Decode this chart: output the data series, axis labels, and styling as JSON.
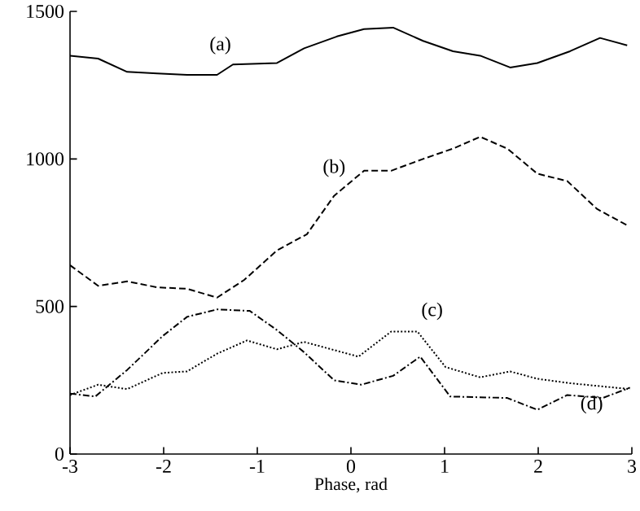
{
  "chart_data": {
    "type": "line",
    "xlabel": "Phase, rad",
    "xlim": [
      -3,
      3
    ],
    "ylim": [
      0,
      1500
    ],
    "xticks": [
      -3,
      -2,
      -1,
      0,
      1,
      2,
      3
    ],
    "yticks": [
      0,
      500,
      1000,
      1500
    ],
    "grid": false,
    "marker": "none",
    "series": [
      {
        "name": "(a)",
        "color": "#000000",
        "line_style": "solid",
        "x": [
          -3,
          -2.7,
          -2.39,
          -2.07,
          -1.75,
          -1.43,
          -1.26,
          -0.79,
          -0.5,
          -0.15,
          0.14,
          0.45,
          0.77,
          1.09,
          1.38,
          1.7,
          1.99,
          2.34,
          2.66,
          2.95
        ],
        "values": [
          1350,
          1340,
          1295,
          1290,
          1285,
          1285,
          1320,
          1325,
          1375,
          1415,
          1440,
          1445,
          1400,
          1365,
          1350,
          1310,
          1325,
          1365,
          1410,
          1385
        ]
      },
      {
        "name": "(b)",
        "color": "#000000",
        "line_style": "dashed",
        "x": [
          -3,
          -2.7,
          -2.39,
          -2.07,
          -1.75,
          -1.43,
          -1.14,
          -0.79,
          -0.47,
          -0.18,
          0.14,
          0.43,
          0.77,
          1.09,
          1.38,
          1.67,
          1.99,
          2.31,
          2.63,
          2.95
        ],
        "values": [
          640,
          570,
          585,
          565,
          560,
          530,
          590,
          690,
          745,
          875,
          960,
          960,
          1000,
          1035,
          1075,
          1035,
          950,
          925,
          830,
          775
        ]
      },
      {
        "name": "(c)",
        "color": "#000000",
        "line_style": "dotted",
        "x": [
          -3,
          -2.7,
          -2.39,
          -2.01,
          -1.75,
          -1.43,
          -1.11,
          -0.79,
          -0.5,
          -0.21,
          0.08,
          0.43,
          0.71,
          1.01,
          1.38,
          1.7,
          1.99,
          2.34,
          2.98
        ],
        "values": [
          200,
          235,
          220,
          275,
          280,
          340,
          385,
          355,
          380,
          355,
          330,
          415,
          415,
          295,
          260,
          280,
          255,
          240,
          220
        ]
      },
      {
        "name": "(d)",
        "color": "#000000",
        "line_style": "dashdot",
        "x": [
          -3,
          -2.73,
          -2.39,
          -2.01,
          -1.75,
          -1.43,
          -1.08,
          -0.79,
          -0.5,
          -0.18,
          0.11,
          0.45,
          0.74,
          1.06,
          1.67,
          1.99,
          2.31,
          2.69,
          2.98
        ],
        "values": [
          205,
          195,
          285,
          400,
          465,
          490,
          485,
          420,
          345,
          250,
          235,
          265,
          330,
          195,
          190,
          150,
          200,
          190,
          225
        ]
      }
    ]
  }
}
